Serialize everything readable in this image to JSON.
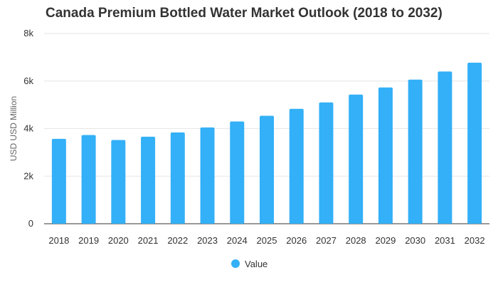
{
  "chart_data": {
    "type": "bar",
    "title": "Canada Premium Bottled Water Market Outlook (2018 to 2032)",
    "xlabel": "",
    "ylabel": "USD USD Million",
    "categories": [
      "2018",
      "2019",
      "2020",
      "2021",
      "2022",
      "2023",
      "2024",
      "2025",
      "2026",
      "2027",
      "2028",
      "2029",
      "2030",
      "2031",
      "2032"
    ],
    "series": [
      {
        "name": "Value",
        "values": [
          3570,
          3730,
          3520,
          3660,
          3840,
          4050,
          4300,
          4540,
          4830,
          5100,
          5430,
          5730,
          6060,
          6400,
          6770
        ]
      }
    ],
    "ylim": [
      0,
      8000
    ],
    "yticks": [
      0,
      2000,
      4000,
      6000,
      8000
    ],
    "ytick_labels": [
      "0",
      "2k",
      "4k",
      "6k",
      "8k"
    ],
    "grid": true,
    "legend_position": "bottom",
    "colors": {
      "bar": "#33b0f7",
      "grid": "#e6e6e6",
      "axis": "#333333"
    }
  }
}
